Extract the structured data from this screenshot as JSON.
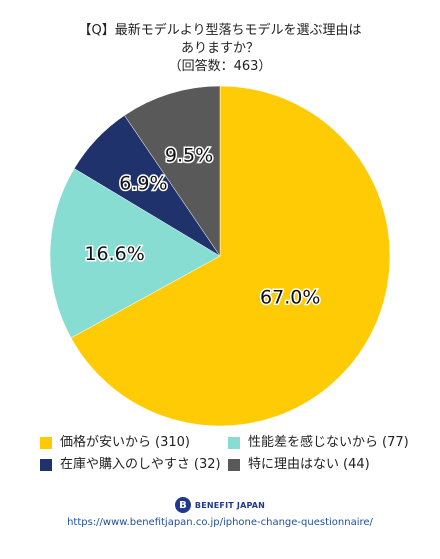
{
  "chart_data": {
    "type": "pie",
    "title_lines": [
      "【Q】最新モデルより型落ちモデルを選ぶ理由は",
      "ありますか？",
      "（回答数：463）"
    ],
    "slices": [
      {
        "label": "価格が安いから",
        "count_label": "(310)",
        "value": 67.0,
        "pct_label": "67.0%",
        "color": "#ffcb05"
      },
      {
        "label": "性能差を感じないから",
        "count_label": "(77)",
        "value": 16.6,
        "pct_label": "16.6%",
        "color": "#88ddd2"
      },
      {
        "label": "在庫や購入のしやすさ",
        "count_label": "(32)",
        "value": 6.9,
        "pct_label": "6.9%",
        "color": "#1f326b"
      },
      {
        "label": "特に理由はない",
        "count_label": "(44)",
        "value": 9.5,
        "pct_label": "9.5%",
        "color": "#595959"
      }
    ],
    "legend_placement": "bottom"
  },
  "branding": {
    "logo_mark": "B",
    "name": "BENEFIT JAPAN",
    "url": "https://www.benefitjapan.co.jp/iphone-change-questionnaire/"
  }
}
